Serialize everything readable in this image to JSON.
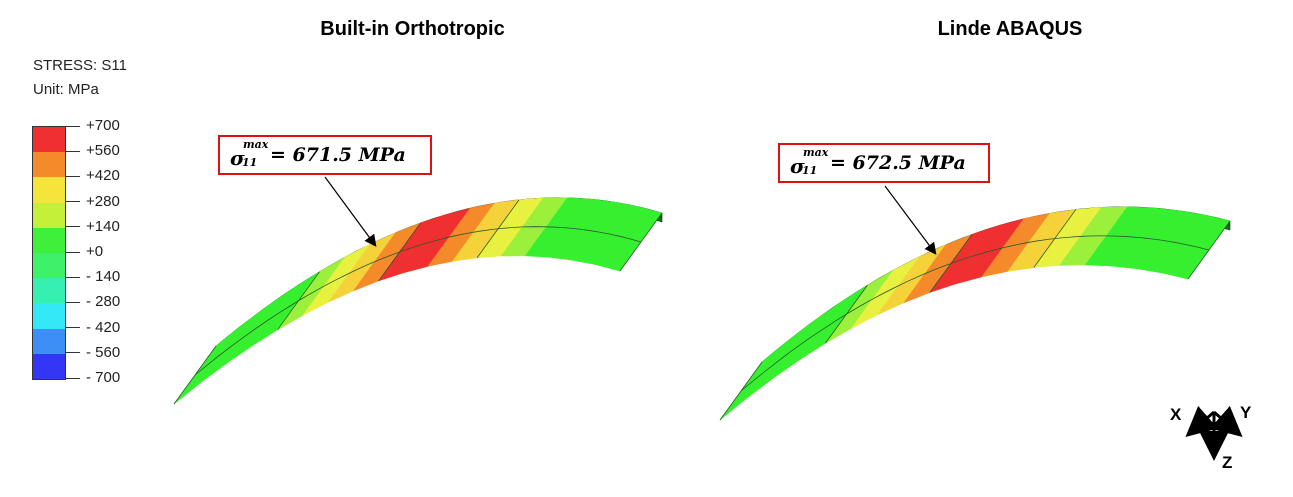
{
  "titles": {
    "left": "Built-in Orthotropic",
    "right": "Linde ABAQUS"
  },
  "legend": {
    "label": "STRESS: S11",
    "unit": "Unit: MPa",
    "ticks": [
      "+700",
      "+560",
      "+420",
      "+280",
      "+140",
      "+0",
      "- 140",
      "- 280",
      "- 420",
      "- 560",
      "- 700"
    ],
    "colors": [
      "#f03030",
      "#f58a2a",
      "#f5e53a",
      "#c5f03a",
      "#3ef03a",
      "#3ef06a",
      "#35f0b0",
      "#35e8f5",
      "#3d8ff5",
      "#3436f5"
    ]
  },
  "callouts": {
    "left": {
      "symbol": "σ",
      "superscript": "max",
      "subscript": "11",
      "equation": "= 671.5 MPa"
    },
    "right": {
      "symbol": "σ",
      "superscript": "max",
      "subscript": "11",
      "equation": "= 672.5 MPa"
    }
  },
  "axes": {
    "x": "X",
    "y": "Y",
    "z": "Z"
  },
  "colors": {
    "callout_border": "#e01010",
    "plate_edge": "#1c6e1c"
  }
}
